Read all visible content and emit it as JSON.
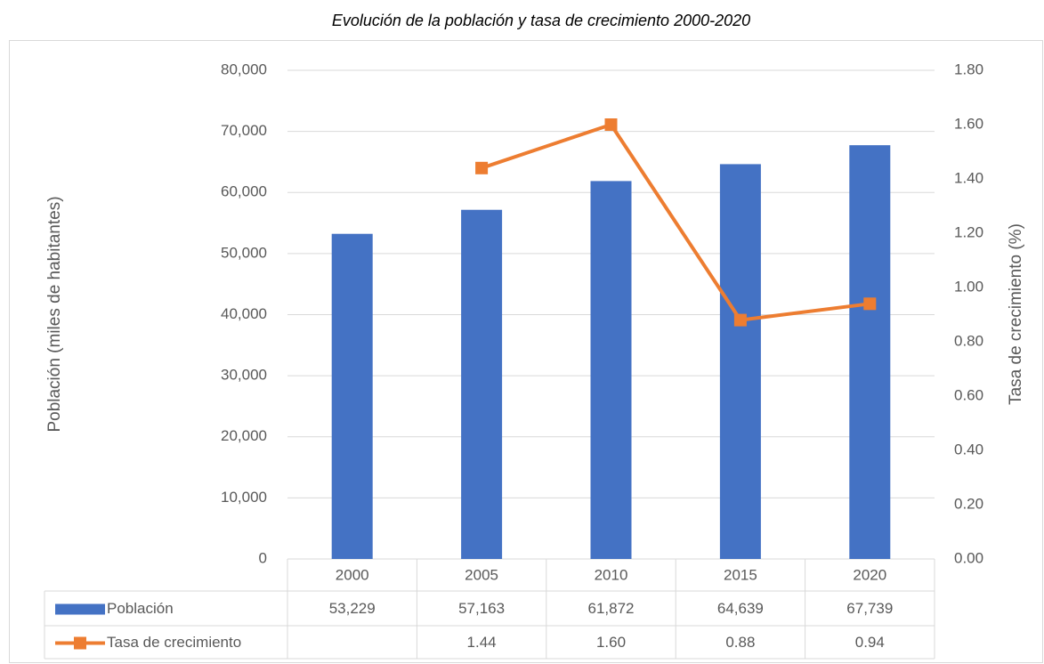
{
  "chart_data": {
    "type": "bar",
    "title": "Evolución de la población y tasa de crecimiento 2000-2020",
    "y_label": "Población (miles de habitantes)",
    "y2_label": "Tasa de crecimiento (%)",
    "categories": [
      "2000",
      "2005",
      "2010",
      "2015",
      "2020"
    ],
    "series": [
      {
        "name": "Población",
        "type": "bar",
        "color": "#4472c4",
        "values": [
          53229,
          57163,
          61872,
          64639,
          67739
        ],
        "value_labels": [
          "53,229",
          "57,163",
          "61,872",
          "64,639",
          "67,739"
        ]
      },
      {
        "name": "Tasa de crecimiento",
        "type": "line",
        "axis": "y2",
        "color": "#ed7d31",
        "values": [
          null,
          1.44,
          1.6,
          0.88,
          0.94
        ],
        "value_labels": [
          null,
          "1.44",
          "1.60",
          "0.88",
          "0.94"
        ]
      }
    ],
    "ylim": [
      0,
      80000
    ],
    "yticks": [
      0,
      {
        "value": 10000,
        "label": "10,000"
      },
      {
        "value": 20000,
        "label": "20,000"
      },
      {
        "value": 30000,
        "label": "30,000"
      },
      {
        "value": 40000,
        "label": "40,000"
      },
      {
        "value": 50000,
        "label": "50,000"
      },
      {
        "value": 60000,
        "label": "60,000"
      },
      {
        "value": 70000,
        "label": "70,000"
      },
      {
        "value": 80000,
        "label": "80,000"
      }
    ],
    "y2lim": [
      0,
      1.8
    ],
    "y2ticks": [
      {
        "value": 0,
        "label": "0.00"
      },
      {
        "value": 0.2,
        "label": "0.20"
      },
      {
        "value": 0.4,
        "label": "0.40"
      },
      {
        "value": 0.6,
        "label": "0.60"
      },
      {
        "value": 0.8,
        "label": "0.80"
      },
      {
        "value": 1.0,
        "label": "1.00"
      },
      {
        "value": 1.2,
        "label": "1.20"
      },
      {
        "value": 1.4,
        "label": "1.40"
      },
      {
        "value": 1.6,
        "label": "1.60"
      },
      {
        "value": 1.8,
        "label": "1.80"
      }
    ],
    "grid": true
  }
}
